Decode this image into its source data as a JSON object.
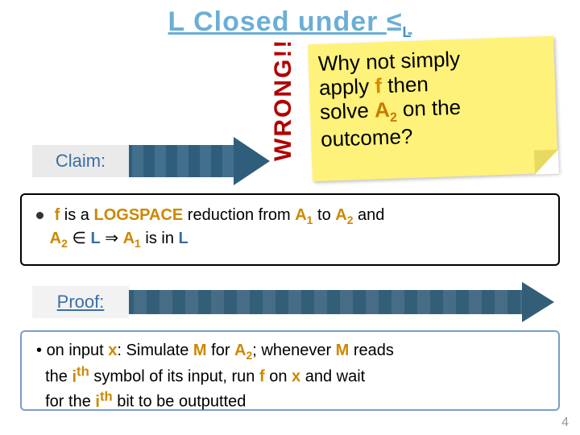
{
  "title_prefix": "L Closed under ",
  "title_leq": "≤",
  "title_leq_sub": "L",
  "sticky": {
    "line1a": "Why not simply",
    "line2a": "apply ",
    "f": "f",
    "line2b": " then",
    "line3a": "solve ",
    "A2": "A",
    "A2sub": "2",
    "line3b": " on the",
    "line4": "outcome?"
  },
  "wrong": "WRONG!!",
  "claim_label": "Claim:",
  "claim": {
    "f": "f",
    "t1": " is a ",
    "logspace": "LOGSPACE",
    "t2": " reduction from ",
    "A1": "A",
    "A1sub": "1",
    "t3": " to ",
    "A2": "A",
    "A2sub": "2",
    "t4": " and",
    "A2b": "A",
    "A2bsub": "2",
    "in": " ∈ ",
    "L1": "L",
    "imp": " ⇒ ",
    "A1b": "A",
    "A1bsub": "1",
    "t5": " is in ",
    "L2": "L"
  },
  "proof_label": "Proof:",
  "proof": {
    "p1": "on input ",
    "x1": "x",
    "p2": ": Simulate ",
    "M1": "M",
    "p3": " for ",
    "A2": "A",
    "A2sub": "2",
    "p4": "; whenever ",
    "M2": "M",
    "p5": " reads",
    "p6": "the ",
    "ith1": "i",
    "ith1sup": "th",
    "p7": " symbol of its input, run ",
    "f": "f",
    "p8": " on ",
    "x2": "x",
    "p9": " and wait",
    "p10": "for the ",
    "ith2": "i",
    "ith2sup": "th",
    "p11": " bit to be outputted"
  },
  "pagenum": "4",
  "colors": {
    "title": "#6baed6",
    "keyword": "#cc8800",
    "wrong": "#b00000",
    "label": "#3a6fa5",
    "sticky_bg": "#fff27a"
  }
}
